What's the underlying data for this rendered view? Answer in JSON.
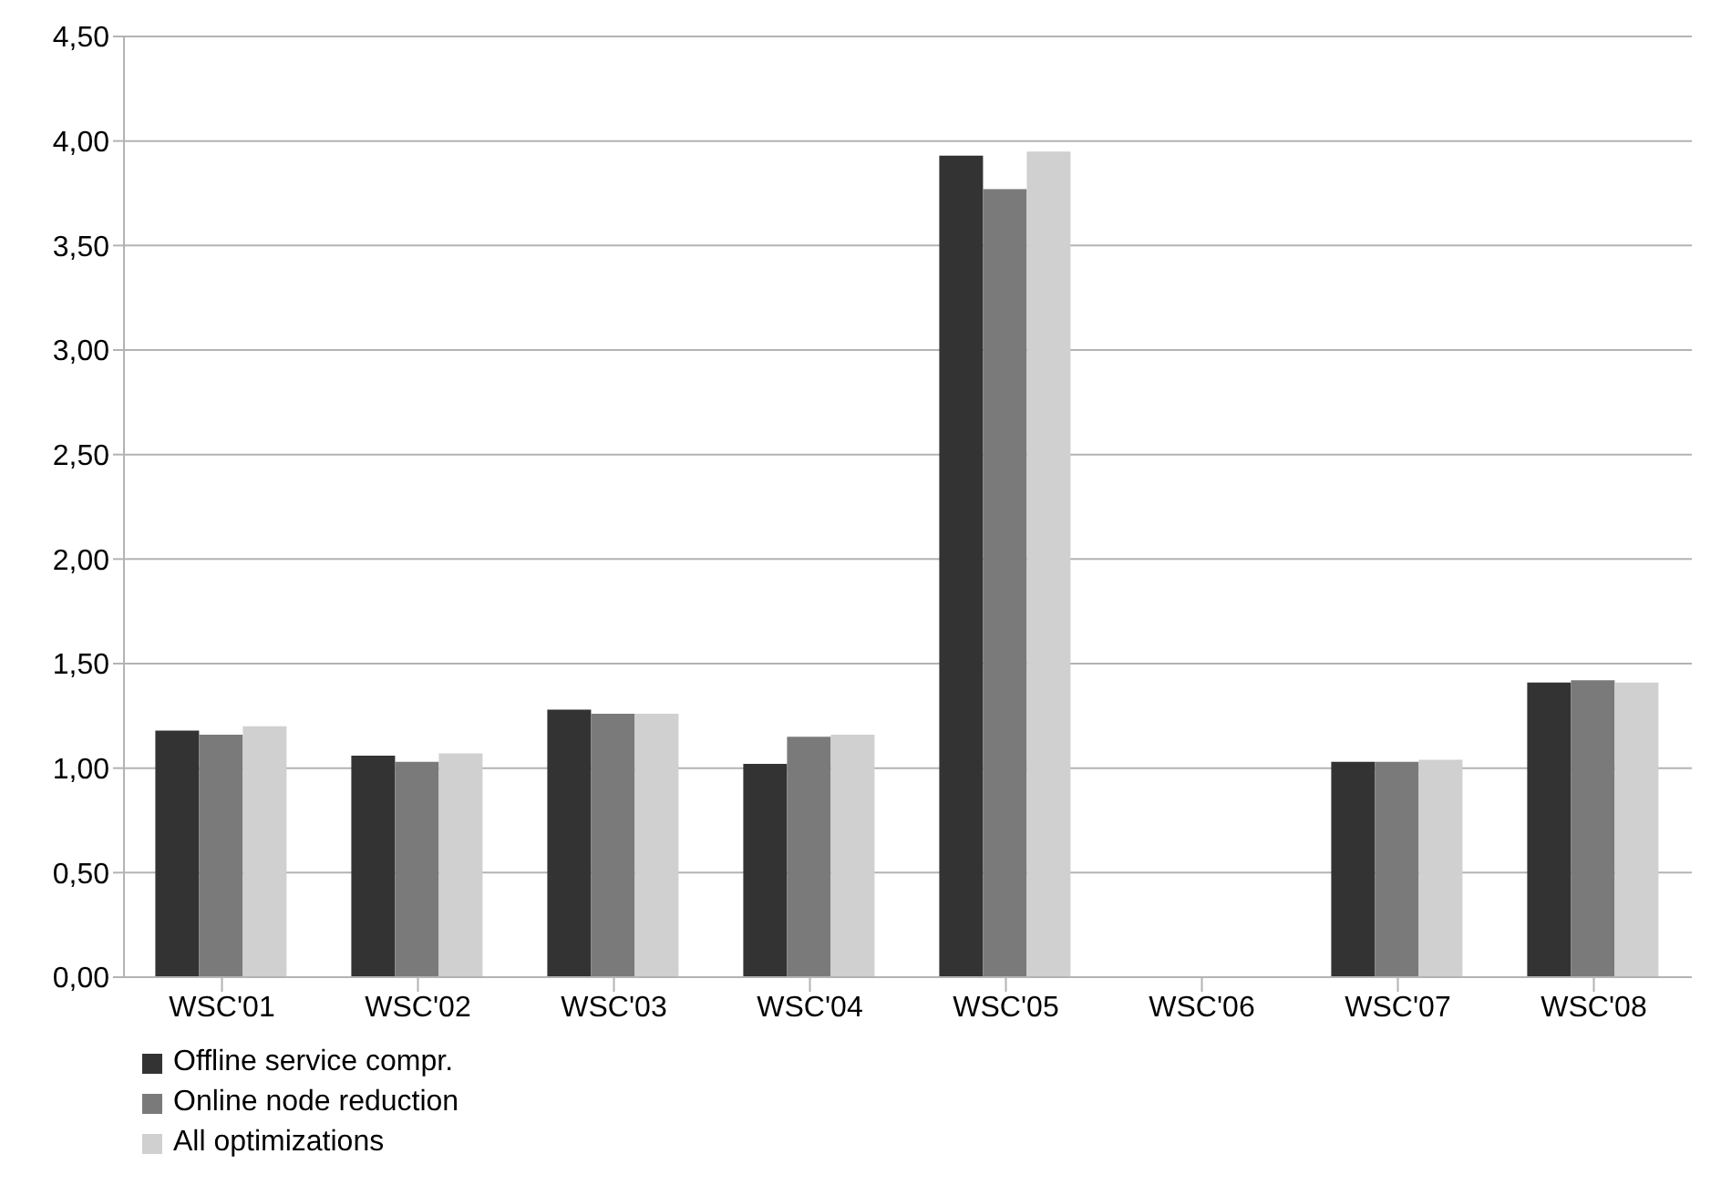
{
  "chart_data": {
    "type": "bar",
    "categories": [
      "WSC'01",
      "WSC'02",
      "WSC'03",
      "WSC'04",
      "WSC'05",
      "WSC'06",
      "WSC'07",
      "WSC'08"
    ],
    "series": [
      {
        "name": "Offline service compr.",
        "color": "#333333",
        "values": [
          1.18,
          1.06,
          1.28,
          1.02,
          3.93,
          null,
          1.03,
          1.41
        ]
      },
      {
        "name": "Online node reduction",
        "color": "#7a7a7a",
        "values": [
          1.16,
          1.03,
          1.26,
          1.15,
          3.77,
          null,
          1.03,
          1.42
        ]
      },
      {
        "name": "All optimizations",
        "color": "#d0d0d0",
        "values": [
          1.2,
          1.07,
          1.26,
          1.16,
          3.95,
          null,
          1.04,
          1.41
        ]
      }
    ],
    "ylim": [
      0,
      4.5
    ],
    "yticks": [
      {
        "value": 0,
        "label": "0,00"
      },
      {
        "value": 0.5,
        "label": "0,50"
      },
      {
        "value": 1,
        "label": "1,00"
      },
      {
        "value": 1.5,
        "label": "1,50"
      },
      {
        "value": 2,
        "label": "2,00"
      },
      {
        "value": 2.5,
        "label": "2,50"
      },
      {
        "value": 3,
        "label": "3,00"
      },
      {
        "value": 3.5,
        "label": "3,50"
      },
      {
        "value": 4,
        "label": "4,00"
      },
      {
        "value": 4.5,
        "label": "4,50"
      }
    ],
    "grid": "y",
    "legend": "bottom left"
  }
}
